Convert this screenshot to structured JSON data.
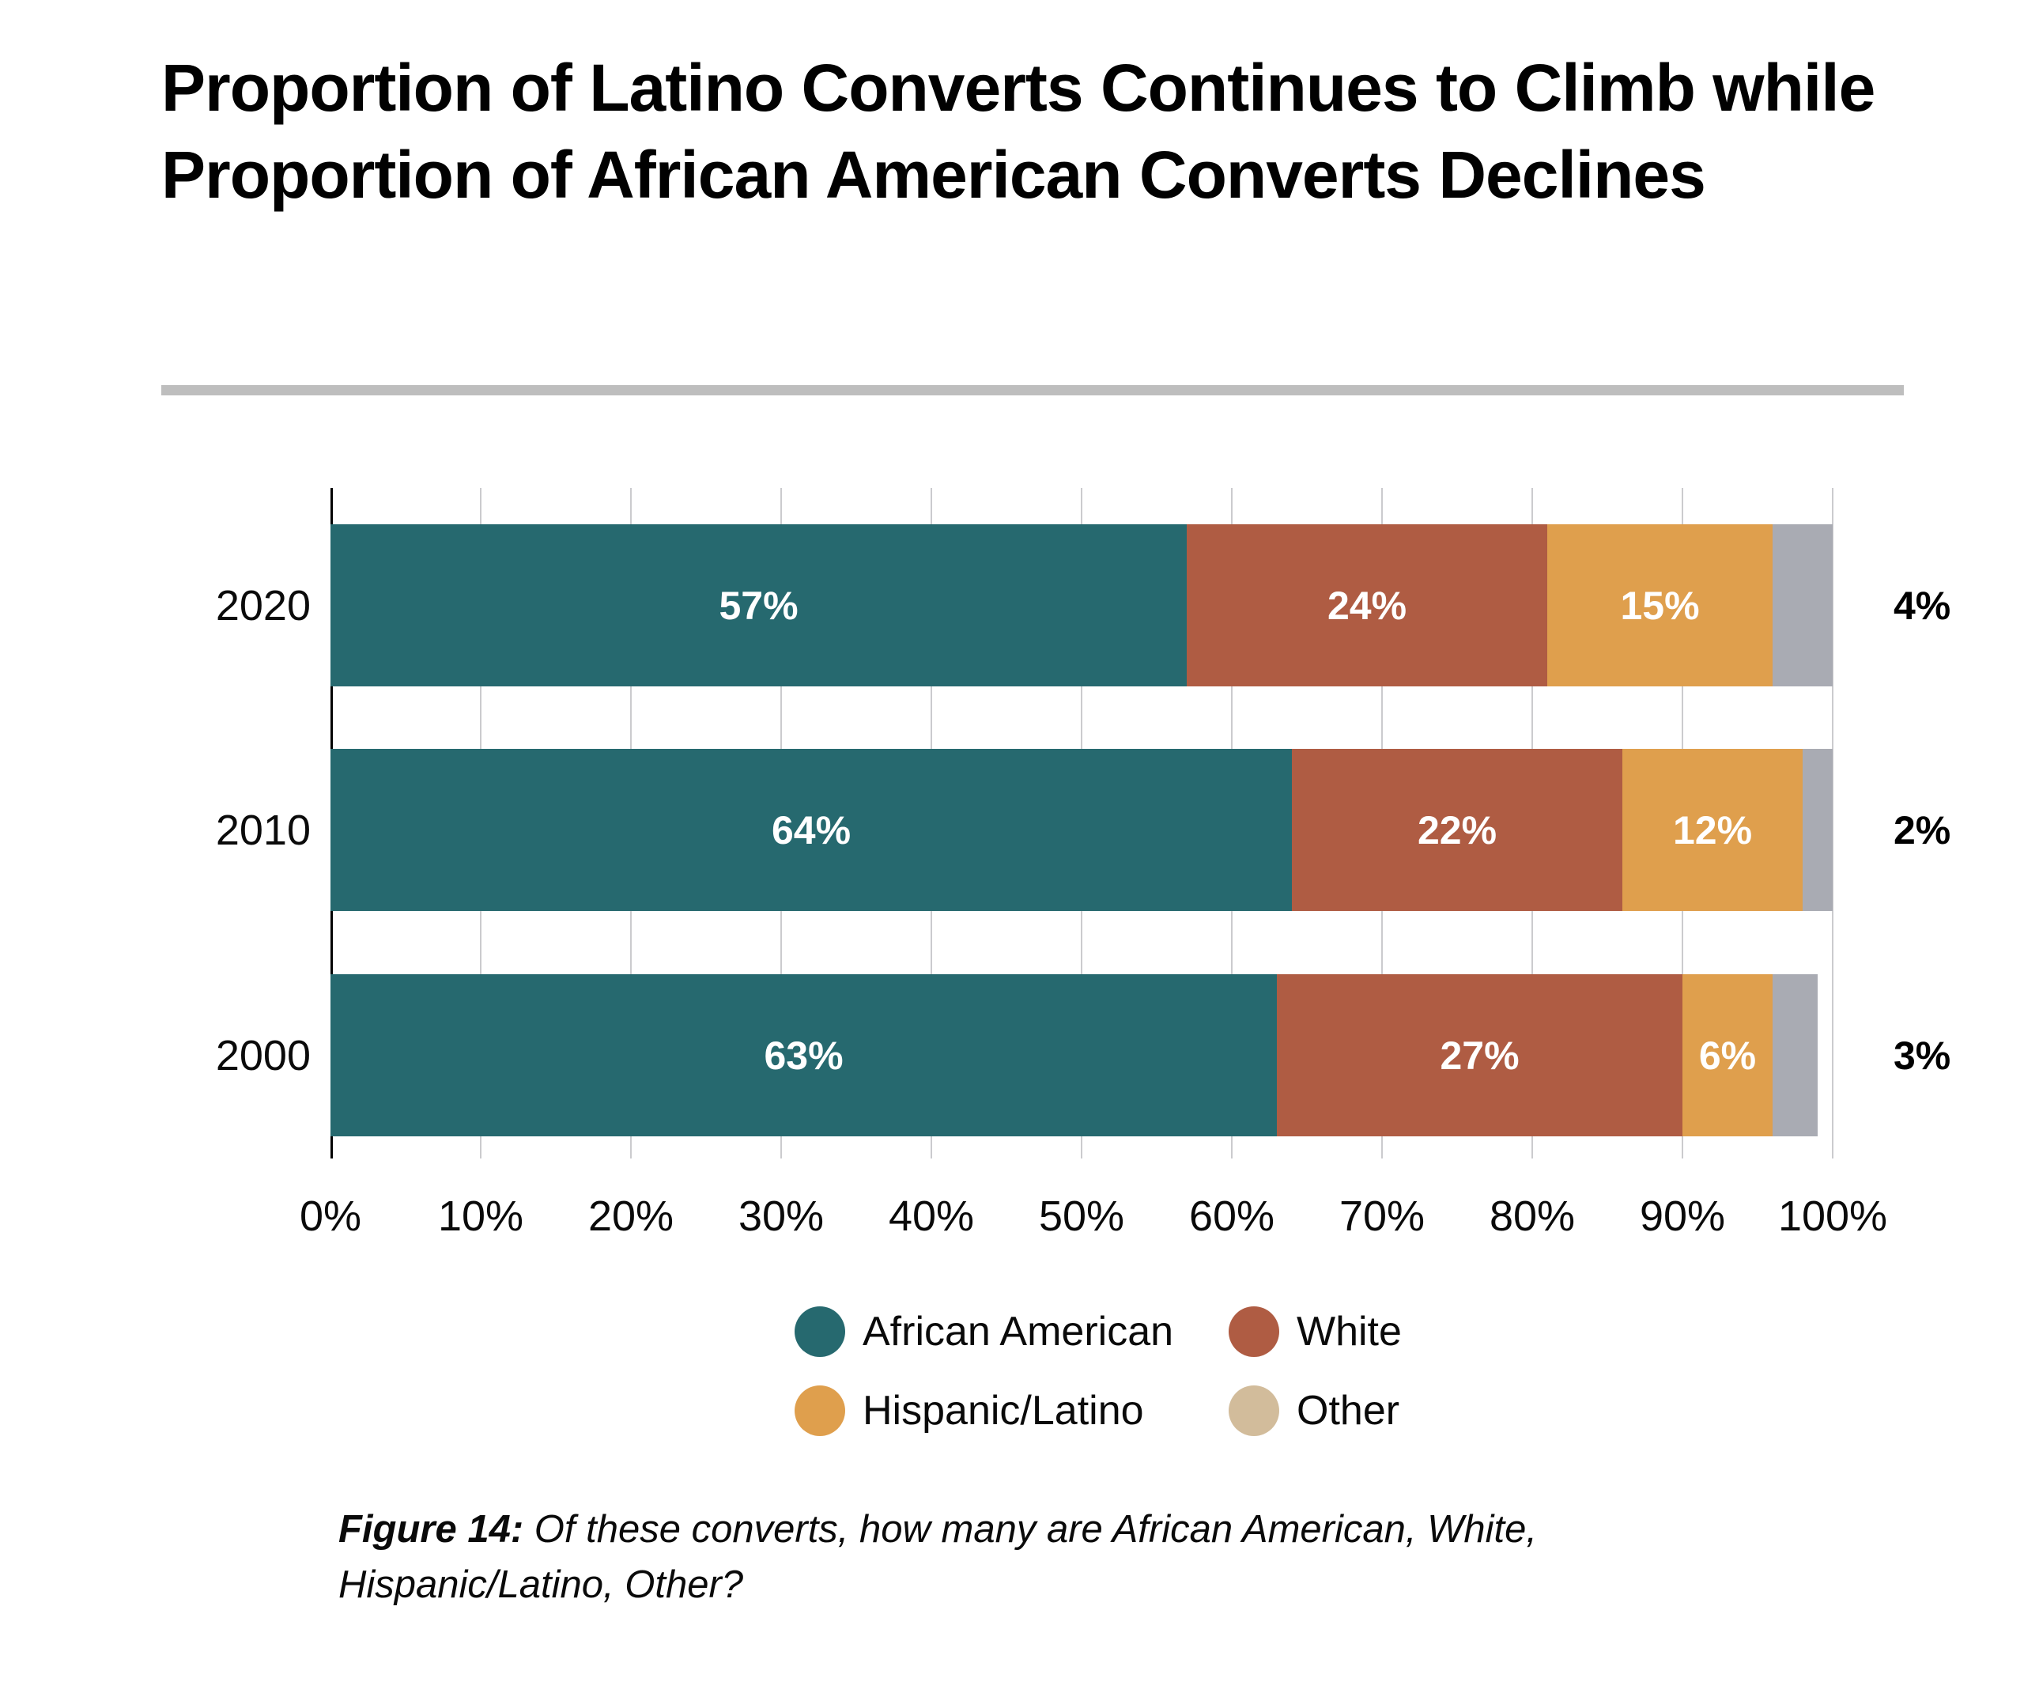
{
  "title": "Proportion of Latino Converts Continues to Climb while Proportion of African American Converts Declines",
  "chart_data": {
    "type": "bar",
    "orientation": "horizontal",
    "stacked": true,
    "title": "Proportion of Latino Converts Continues to Climb while Proportion of African American Converts Declines",
    "categories": [
      "2020",
      "2010",
      "2000"
    ],
    "series": [
      {
        "name": "African American",
        "color": "#26696F",
        "label_color": "#ffffff",
        "values": [
          57,
          64,
          63
        ]
      },
      {
        "name": "White",
        "color": "#AF5C43",
        "label_color": "#ffffff",
        "values": [
          24,
          22,
          27
        ]
      },
      {
        "name": "Hispanic/Latino",
        "color": "#DF9F4D",
        "label_color": "#ffffff",
        "values": [
          15,
          12,
          6
        ]
      },
      {
        "name": "Other",
        "color": "#A9ABB3",
        "label_color": "#000000",
        "label_outside": true,
        "values": [
          4,
          2,
          3
        ]
      }
    ],
    "x_ticks": [
      "0%",
      "10%",
      "20%",
      "30%",
      "40%",
      "50%",
      "60%",
      "70%",
      "80%",
      "90%",
      "100%"
    ],
    "xlim": [
      0,
      100
    ],
    "grid": true,
    "legend_position": "bottom"
  },
  "legend": {
    "items": [
      {
        "label": "African American",
        "color": "#26696F"
      },
      {
        "label": "White",
        "color": "#AF5C43"
      },
      {
        "label": "Hispanic/Latino",
        "color": "#DF9F4D"
      },
      {
        "label": "Other",
        "color": "#D2BC9B"
      }
    ]
  },
  "caption": {
    "label": "Figure 14:",
    "text": "Of these converts, how many are African American, White, Hispanic/Latino, Other?"
  },
  "colors": {
    "divider": "#BEBEBE",
    "gridline": "#CBCBCE",
    "axis": "#000000",
    "bar_other_gray": "#A9ABB3",
    "legend_other_tan": "#D2BC9B"
  }
}
